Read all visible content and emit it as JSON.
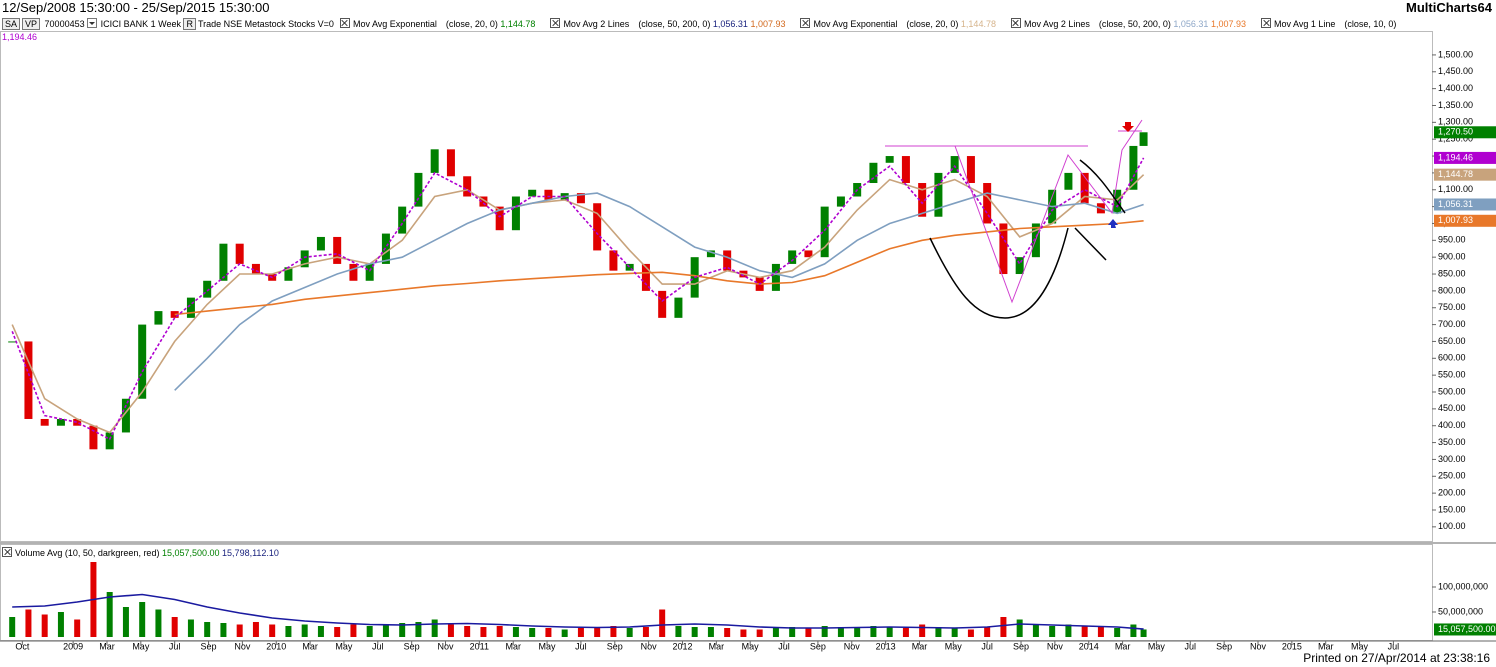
{
  "header": {
    "range": "12/Sep/2008 15:30:00 - 25/Sep/2015 15:30:00",
    "brand": "MultiCharts64"
  },
  "toolbar": {
    "sa": "SA",
    "vp": "VP",
    "id": "70000453",
    "r": "R",
    "info": "Trade NSE Metastock Stocks V=0"
  },
  "footer": "Printed on 27/Apr/2014 at 23:38:16",
  "chart_data": {
    "type": "candlestick",
    "xlim": [
      2008.64,
      2015.69
    ],
    "xticks": [
      {
        "value": 2008.75,
        "label": "Oct"
      },
      {
        "value": 2009,
        "label": "2009"
      },
      {
        "value": 2009.1667,
        "label": "Mar"
      },
      {
        "value": 2009.3333,
        "label": "May"
      },
      {
        "value": 2009.5,
        "label": "Jul"
      },
      {
        "value": 2009.6667,
        "label": "Sep"
      },
      {
        "value": 2009.8333,
        "label": "Nov"
      },
      {
        "value": 2010,
        "label": "2010"
      },
      {
        "value": 2010.1667,
        "label": "Mar"
      },
      {
        "value": 2010.3333,
        "label": "May"
      },
      {
        "value": 2010.5,
        "label": "Jul"
      },
      {
        "value": 2010.6667,
        "label": "Sep"
      },
      {
        "value": 2010.8333,
        "label": "Nov"
      },
      {
        "value": 2011,
        "label": "2011"
      },
      {
        "value": 2011.1667,
        "label": "Mar"
      },
      {
        "value": 2011.3333,
        "label": "May"
      },
      {
        "value": 2011.5,
        "label": "Jul"
      },
      {
        "value": 2011.6667,
        "label": "Sep"
      },
      {
        "value": 2011.8333,
        "label": "Nov"
      },
      {
        "value": 2012,
        "label": "2012"
      },
      {
        "value": 2012.1667,
        "label": "Mar"
      },
      {
        "value": 2012.3333,
        "label": "May"
      },
      {
        "value": 2012.5,
        "label": "Jul"
      },
      {
        "value": 2012.6667,
        "label": "Sep"
      },
      {
        "value": 2012.8333,
        "label": "Nov"
      },
      {
        "value": 2013,
        "label": "2013"
      },
      {
        "value": 2013.1667,
        "label": "Mar"
      },
      {
        "value": 2013.3333,
        "label": "May"
      },
      {
        "value": 2013.5,
        "label": "Jul"
      },
      {
        "value": 2013.6667,
        "label": "Sep"
      },
      {
        "value": 2013.8333,
        "label": "Nov"
      },
      {
        "value": 2014,
        "label": "2014"
      },
      {
        "value": 2014.1667,
        "label": "Mar"
      },
      {
        "value": 2014.3333,
        "label": "May"
      },
      {
        "value": 2014.5,
        "label": "Jul"
      },
      {
        "value": 2014.6667,
        "label": "Sep"
      },
      {
        "value": 2014.8333,
        "label": "Nov"
      },
      {
        "value": 2015,
        "label": "2015"
      },
      {
        "value": 2015.1667,
        "label": "Mar"
      },
      {
        "value": 2015.3333,
        "label": "May"
      },
      {
        "value": 2015.5,
        "label": "Jul"
      }
    ],
    "ylim": [
      58,
      1568
    ],
    "yticks": [
      {
        "value": 100,
        "label": "100.00"
      },
      {
        "value": 150,
        "label": "150.00"
      },
      {
        "value": 200,
        "label": "200.00"
      },
      {
        "value": 250,
        "label": "250.00"
      },
      {
        "value": 300,
        "label": "300.00"
      },
      {
        "value": 350,
        "label": "350.00"
      },
      {
        "value": 400,
        "label": "400.00"
      },
      {
        "value": 450,
        "label": "450.00"
      },
      {
        "value": 500,
        "label": "500.00"
      },
      {
        "value": 550,
        "label": "550.00"
      },
      {
        "value": 600,
        "label": "600.00"
      },
      {
        "value": 650,
        "label": "650.00"
      },
      {
        "value": 700,
        "label": "700.00"
      },
      {
        "value": 750,
        "label": "750.00"
      },
      {
        "value": 800,
        "label": "800.00"
      },
      {
        "value": 850,
        "label": "850.00"
      },
      {
        "value": 900,
        "label": "900.00"
      },
      {
        "value": 950,
        "label": "950.00"
      },
      {
        "value": 1000,
        "label": "1,000.00"
      },
      {
        "value": 1050,
        "label": "1,050.00"
      },
      {
        "value": 1100,
        "label": "1,100.00"
      },
      {
        "value": 1150,
        "label": "1,150.00"
      },
      {
        "value": 1200,
        "label": "1,200.00"
      },
      {
        "value": 1250,
        "label": "1,250.00"
      },
      {
        "value": 1300,
        "label": "1,300.00"
      },
      {
        "value": 1350,
        "label": "1,350.00"
      },
      {
        "value": 1400,
        "label": "1,400.00"
      },
      {
        "value": 1450,
        "label": "1,450.00"
      },
      {
        "value": 1500,
        "label": "1,500.00"
      }
    ],
    "series": [
      {
        "name": "ICICI BANK 1 Week",
        "color": "#008000",
        "down_color": "#e00000",
        "x": [
          2008.7,
          2008.78,
          2008.86,
          2008.94,
          2009.02,
          2009.1,
          2009.18,
          2009.26,
          2009.34,
          2009.42,
          2009.5,
          2009.58,
          2009.66,
          2009.74,
          2009.82,
          2009.9,
          2009.98,
          2010.06,
          2010.14,
          2010.22,
          2010.3,
          2010.38,
          2010.46,
          2010.54,
          2010.62,
          2010.7,
          2010.78,
          2010.86,
          2010.94,
          2011.02,
          2011.1,
          2011.18,
          2011.26,
          2011.34,
          2011.42,
          2011.5,
          2011.58,
          2011.66,
          2011.74,
          2011.82,
          2011.9,
          2011.98,
          2012.06,
          2012.14,
          2012.22,
          2012.3,
          2012.38,
          2012.46,
          2012.54,
          2012.62,
          2012.7,
          2012.78,
          2012.86,
          2012.94,
          2013.02,
          2013.1,
          2013.18,
          2013.26,
          2013.34,
          2013.42,
          2013.5,
          2013.58,
          2013.66,
          2013.74,
          2013.82,
          2013.9,
          2013.98,
          2014.06,
          2014.14,
          2014.22,
          2014.27
        ],
        "values": [
          650,
          420,
          400,
          420,
          400,
          330,
          380,
          480,
          700,
          740,
          720,
          780,
          830,
          940,
          880,
          850,
          830,
          870,
          920,
          960,
          880,
          830,
          880,
          970,
          1050,
          1150,
          1220,
          1140,
          1080,
          1050,
          980,
          1080,
          1100,
          1070,
          1090,
          1060,
          920,
          860,
          880,
          800,
          720,
          780,
          900,
          920,
          860,
          840,
          800,
          880,
          920,
          900,
          1050,
          1080,
          1120,
          1180,
          1200,
          1120,
          1020,
          1150,
          1200,
          1120,
          1000,
          850,
          900,
          1000,
          1100,
          1150,
          1060,
          1030,
          1100,
          1230,
          1270.5
        ],
        "last_value": {
          "value": 1270.5,
          "label": "1,270.50"
        }
      }
    ],
    "studies": [
      {
        "name": "Mov Avg Exponential",
        "params": "(close, 20, 0)",
        "x": [
          2008.7,
          2008.86,
          2009.02,
          2009.18,
          2009.34,
          2009.5,
          2009.66,
          2009.82,
          2009.98,
          2010.14,
          2010.3,
          2010.46,
          2010.62,
          2010.78,
          2010.94,
          2011.1,
          2011.26,
          2011.42,
          2011.58,
          2011.74,
          2011.9,
          2012.06,
          2012.22,
          2012.38,
          2012.54,
          2012.7,
          2012.86,
          2013.02,
          2013.18,
          2013.34,
          2013.5,
          2013.66,
          2013.82,
          2013.98,
          2014.14,
          2014.27
        ],
        "lines": [
          {
            "color": "#c8a37c",
            "legend_color": "#008000",
            "last_value": {
              "value": 1144.78,
              "label": "1,144.78"
            },
            "values": [
              700,
              480,
              420,
              380,
              500,
              650,
              760,
              850,
              850,
              880,
              900,
              880,
              950,
              1080,
              1100,
              1040,
              1060,
              1070,
              1030,
              920,
              820,
              820,
              860,
              840,
              860,
              930,
              1040,
              1130,
              1100,
              1130,
              1080,
              960,
              1000,
              1080,
              1070,
              1144.78
            ]
          }
        ]
      },
      {
        "name": "Mov Avg 2 Lines",
        "params": "(close, 50, 200, 0)",
        "x": [
          2008.7,
          2008.86,
          2009.02,
          2009.18,
          2009.34,
          2009.5,
          2009.66,
          2009.82,
          2009.98,
          2010.14,
          2010.3,
          2010.46,
          2010.62,
          2010.78,
          2010.94,
          2011.1,
          2011.26,
          2011.42,
          2011.58,
          2011.74,
          2011.9,
          2012.06,
          2012.22,
          2012.38,
          2012.54,
          2012.7,
          2012.86,
          2013.02,
          2013.18,
          2013.34,
          2013.5,
          2013.66,
          2013.82,
          2013.98,
          2014.14,
          2014.27
        ],
        "lines": [
          {
            "color": "#7f9fc0",
            "legend_color": "#1a237e",
            "last_value": {
              "value": 1056.31,
              "label": "1,056.31"
            },
            "values": [
              null,
              null,
              null,
              null,
              null,
              505,
              600,
              700,
              770,
              810,
              850,
              880,
              900,
              950,
              1000,
              1040,
              1060,
              1080,
              1090,
              1050,
              990,
              930,
              900,
              860,
              840,
              880,
              950,
              1000,
              1030,
              1060,
              1090,
              1070,
              1050,
              1060,
              1030,
              1056.31
            ]
          },
          {
            "color": "#e8782a",
            "legend_color": "#d2691e",
            "last_value": {
              "value": 1007.93,
              "label": "1,007.93"
            },
            "values": [
              null,
              null,
              null,
              null,
              null,
              730,
              740,
              750,
              760,
              775,
              785,
              795,
              805,
              815,
              822,
              830,
              836,
              842,
              848,
              852,
              855,
              845,
              830,
              820,
              825,
              845,
              885,
              925,
              950,
              965,
              975,
              985,
              990,
              995,
              1000,
              1007.93
            ]
          }
        ]
      },
      {
        "name": "Mov Avg Exponential",
        "params": "(close, 20, 0)",
        "lines": [
          {
            "legend_color": "#d6b48c",
            "last_value": {
              "value": 1144.78,
              "label": "1,144.78"
            }
          }
        ]
      },
      {
        "name": "Mov Avg 2 Lines",
        "params": "(close, 50, 200, 0)",
        "lines": [
          {
            "legend_color": "#8fa8c8",
            "last_value": {
              "value": 1056.31,
              "label": "1,056.31"
            }
          },
          {
            "legend_color": "#e8782a",
            "last_value": {
              "value": 1007.93,
              "label": "1,007.93"
            }
          }
        ]
      },
      {
        "name": "Mov Avg 1 Line",
        "params": "(close, 10, 0)",
        "x": [
          2008.7,
          2008.86,
          2009.02,
          2009.18,
          2009.34,
          2009.5,
          2009.66,
          2009.82,
          2009.98,
          2010.14,
          2010.3,
          2010.46,
          2010.62,
          2010.78,
          2010.94,
          2011.1,
          2011.26,
          2011.42,
          2011.58,
          2011.74,
          2011.9,
          2012.06,
          2012.22,
          2012.38,
          2012.54,
          2012.7,
          2012.86,
          2013.02,
          2013.18,
          2013.34,
          2013.5,
          2013.66,
          2013.82,
          2013.98,
          2014.14,
          2014.27
        ],
        "lines": [
          {
            "color": "#b000d0",
            "legend_color": "#b000d0",
            "dashed": true,
            "last_value": {
              "value": 1194.46,
              "label": "1,194.46"
            },
            "values": [
              680,
              430,
              410,
              360,
              560,
              720,
              800,
              880,
              840,
              900,
              910,
              860,
              1000,
              1150,
              1100,
              1020,
              1080,
              1080,
              970,
              870,
              770,
              840,
              870,
              820,
              890,
              980,
              1100,
              1170,
              1060,
              1170,
              1030,
              880,
              1040,
              1100,
              1050,
              1194.46
            ]
          }
        ]
      }
    ],
    "volume": {
      "name": "Volume Avg",
      "params": "(10, 50, darkgreen, red)",
      "color": "#008000",
      "down_color": "#e00000",
      "ylim": [
        0,
        178000000
      ],
      "yticks": [
        {
          "value": 50000000,
          "label": "50,000,000"
        },
        {
          "value": 100000000,
          "label": "100,000,000"
        }
      ],
      "values": [
        40000000,
        55000000,
        45000000,
        50000000,
        35000000,
        150000000,
        90000000,
        60000000,
        70000000,
        55000000,
        40000000,
        35000000,
        30000000,
        28000000,
        25000000,
        30000000,
        25000000,
        22000000,
        25000000,
        22000000,
        20000000,
        25000000,
        22000000,
        25000000,
        28000000,
        30000000,
        35000000,
        25000000,
        22000000,
        20000000,
        22000000,
        20000000,
        18000000,
        18000000,
        15000000,
        18000000,
        20000000,
        22000000,
        18000000,
        20000000,
        55000000,
        22000000,
        20000000,
        20000000,
        18000000,
        15000000,
        15000000,
        18000000,
        20000000,
        18000000,
        22000000,
        20000000,
        18000000,
        22000000,
        20000000,
        18000000,
        25000000,
        20000000,
        18000000,
        15000000,
        20000000,
        40000000,
        35000000,
        25000000,
        22000000,
        25000000,
        22000000,
        20000000,
        18000000,
        25000000,
        15057500
      ],
      "last_values": [
        {
          "value": 15057500,
          "label": "15,057,500.00",
          "legend_color": "#008000"
        },
        {
          "value": 15798112.1,
          "label": "15,798,112.10",
          "legend_color": "#1a237e"
        }
      ],
      "avg": {
        "color": "#1a1aa0",
        "x": [
          2008.7,
          2008.86,
          2009.02,
          2009.18,
          2009.34,
          2009.5,
          2009.66,
          2009.82,
          2009.98,
          2010.14,
          2010.3,
          2010.46,
          2010.62,
          2010.78,
          2010.94,
          2011.1,
          2011.26,
          2011.42,
          2011.58,
          2011.74,
          2011.9,
          2012.06,
          2012.22,
          2012.38,
          2012.54,
          2012.7,
          2012.86,
          2013.02,
          2013.18,
          2013.34,
          2013.5,
          2013.66,
          2013.82,
          2013.98,
          2014.14,
          2014.27
        ],
        "values": [
          60000000,
          62000000,
          70000000,
          80000000,
          85000000,
          75000000,
          60000000,
          48000000,
          38000000,
          32000000,
          28000000,
          25000000,
          24000000,
          26000000,
          27000000,
          25000000,
          22000000,
          20000000,
          19000000,
          20000000,
          24000000,
          26000000,
          24000000,
          20000000,
          18000000,
          18000000,
          19000000,
          20000000,
          19000000,
          18000000,
          20000000,
          26000000,
          24000000,
          22000000,
          20000000,
          15798112.1
        ]
      }
    }
  }
}
